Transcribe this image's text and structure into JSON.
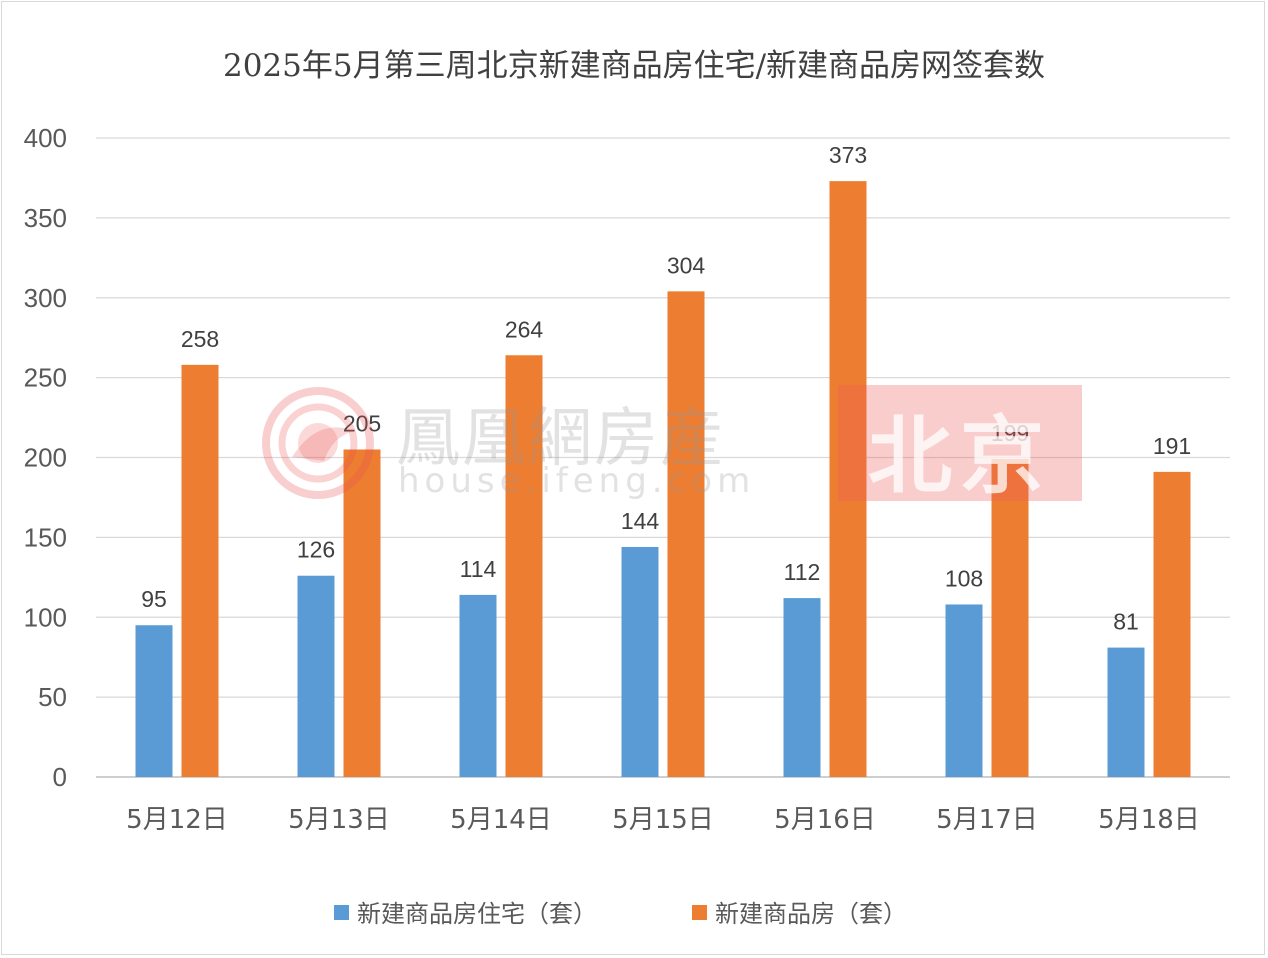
{
  "chart_data": {
    "type": "bar",
    "title": "2025年5月第三周北京新建商品房住宅/新建商品房网签套数",
    "categories": [
      "5月12日",
      "5月13日",
      "5月14日",
      "5月15日",
      "5月16日",
      "5月17日",
      "5月18日"
    ],
    "series": [
      {
        "name": "新建商品房住宅（套）",
        "color": "#5b9bd5",
        "values": [
          95,
          126,
          114,
          144,
          112,
          108,
          81
        ]
      },
      {
        "name": "新建商品房（套）",
        "color": "#ed7d31",
        "values": [
          258,
          205,
          264,
          304,
          373,
          199,
          191
        ]
      }
    ],
    "ylim": [
      0,
      400
    ],
    "yticks": [
      0,
      50,
      100,
      150,
      200,
      250,
      300,
      350,
      400
    ],
    "grid": true,
    "legend_position": "bottom",
    "data_labels": true
  },
  "watermark": {
    "text": "鳳凰網房産",
    "url": "house.ifeng.com",
    "city": "北京",
    "logo_icon": "ifeng-phoenix-logo-icon",
    "accent_color": "#f05a5a"
  }
}
